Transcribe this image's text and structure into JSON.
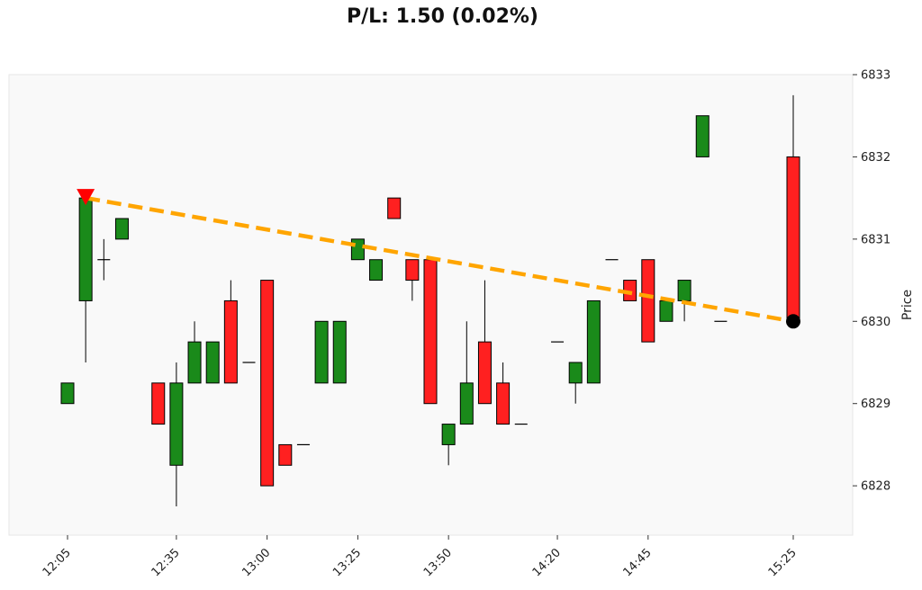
{
  "chart_data": {
    "type": "candlestick",
    "title": "P/L: 1.50 (0.02%)",
    "ylabel": "Price",
    "xlabel": "",
    "ylim": [
      6827.4,
      6833.0
    ],
    "y_ticks": [
      6828,
      6829,
      6830,
      6831,
      6832,
      6833
    ],
    "x_ticks": [
      "12:05",
      "12:35",
      "13:00",
      "13:25",
      "13:50",
      "14:20",
      "14:45",
      "15:25"
    ],
    "grid": false,
    "colors": {
      "up": "#1a8a1a",
      "down": "#ff2020",
      "trend": "#ffa500",
      "entry": "#ff0000",
      "exit": "#000000",
      "plot_bg": "#f9f9f9"
    },
    "candles": [
      {
        "time": "12:05",
        "open": 6829.0,
        "high": 6829.25,
        "low": 6829.0,
        "close": 6829.25
      },
      {
        "time": "12:10",
        "open": 6830.25,
        "high": 6831.5,
        "low": 6829.5,
        "close": 6831.5
      },
      {
        "time": "12:15",
        "open": 6830.75,
        "high": 6831.0,
        "low": 6830.5,
        "close": 6830.75
      },
      {
        "time": "12:20",
        "open": 6831.0,
        "high": 6831.25,
        "low": 6831.0,
        "close": 6831.25
      },
      {
        "time": "12:30",
        "open": 6829.25,
        "high": 6829.25,
        "low": 6828.75,
        "close": 6828.75
      },
      {
        "time": "12:35",
        "open": 6828.25,
        "high": 6829.5,
        "low": 6827.75,
        "close": 6829.25
      },
      {
        "time": "12:40",
        "open": 6829.25,
        "high": 6830.0,
        "low": 6829.25,
        "close": 6829.75
      },
      {
        "time": "12:45",
        "open": 6829.25,
        "high": 6829.75,
        "low": 6829.25,
        "close": 6829.75
      },
      {
        "time": "12:50",
        "open": 6830.25,
        "high": 6830.5,
        "low": 6829.25,
        "close": 6829.25
      },
      {
        "time": "12:55",
        "open": 6829.5,
        "high": 6829.5,
        "low": 6829.5,
        "close": 6829.5
      },
      {
        "time": "13:00",
        "open": 6830.5,
        "high": 6830.5,
        "low": 6828.0,
        "close": 6828.0
      },
      {
        "time": "13:05",
        "open": 6828.5,
        "high": 6828.5,
        "low": 6828.25,
        "close": 6828.25
      },
      {
        "time": "13:10",
        "open": 6828.5,
        "high": 6828.5,
        "low": 6828.5,
        "close": 6828.5
      },
      {
        "time": "13:15",
        "open": 6829.25,
        "high": 6830.0,
        "low": 6829.25,
        "close": 6830.0
      },
      {
        "time": "13:20",
        "open": 6829.25,
        "high": 6830.0,
        "low": 6829.25,
        "close": 6830.0
      },
      {
        "time": "13:25",
        "open": 6830.75,
        "high": 6831.0,
        "low": 6830.75,
        "close": 6831.0
      },
      {
        "time": "13:30",
        "open": 6830.5,
        "high": 6830.75,
        "low": 6830.5,
        "close": 6830.75
      },
      {
        "time": "13:35",
        "open": 6831.5,
        "high": 6831.5,
        "low": 6831.25,
        "close": 6831.25
      },
      {
        "time": "13:40",
        "open": 6830.75,
        "high": 6830.75,
        "low": 6830.25,
        "close": 6830.5
      },
      {
        "time": "13:45",
        "open": 6830.75,
        "high": 6830.75,
        "low": 6829.0,
        "close": 6829.0
      },
      {
        "time": "13:50",
        "open": 6828.5,
        "high": 6828.75,
        "low": 6828.25,
        "close": 6828.75
      },
      {
        "time": "13:55",
        "open": 6828.75,
        "high": 6830.0,
        "low": 6828.75,
        "close": 6829.25
      },
      {
        "time": "14:00",
        "open": 6829.75,
        "high": 6830.5,
        "low": 6829.0,
        "close": 6829.0
      },
      {
        "time": "14:05",
        "open": 6829.25,
        "high": 6829.5,
        "low": 6828.75,
        "close": 6828.75
      },
      {
        "time": "14:10",
        "open": 6828.75,
        "high": 6828.75,
        "low": 6828.75,
        "close": 6828.75
      },
      {
        "time": "14:20",
        "open": 6829.75,
        "high": 6829.75,
        "low": 6829.75,
        "close": 6829.75
      },
      {
        "time": "14:25",
        "open": 6829.25,
        "high": 6829.5,
        "low": 6829.0,
        "close": 6829.5
      },
      {
        "time": "14:30",
        "open": 6829.25,
        "high": 6830.25,
        "low": 6829.25,
        "close": 6830.25
      },
      {
        "time": "14:35",
        "open": 6830.75,
        "high": 6830.75,
        "low": 6830.75,
        "close": 6830.75
      },
      {
        "time": "14:40",
        "open": 6830.5,
        "high": 6830.5,
        "low": 6830.25,
        "close": 6830.25
      },
      {
        "time": "14:45",
        "open": 6830.75,
        "high": 6830.75,
        "low": 6829.75,
        "close": 6829.75
      },
      {
        "time": "14:50",
        "open": 6830.0,
        "high": 6830.25,
        "low": 6830.0,
        "close": 6830.25
      },
      {
        "time": "14:55",
        "open": 6830.25,
        "high": 6830.5,
        "low": 6830.0,
        "close": 6830.5
      },
      {
        "time": "15:00",
        "open": 6832.0,
        "high": 6832.5,
        "low": 6832.0,
        "close": 6832.5
      },
      {
        "time": "15:05",
        "open": 6830.0,
        "high": 6830.0,
        "low": 6830.0,
        "close": 6830.0
      },
      {
        "time": "15:25",
        "open": 6832.0,
        "high": 6832.75,
        "low": 6830.0,
        "close": 6830.0
      }
    ],
    "trade_line": {
      "entry": {
        "time": "12:10",
        "price": 6831.5
      },
      "exit": {
        "time": "15:25",
        "price": 6830.0
      }
    }
  }
}
